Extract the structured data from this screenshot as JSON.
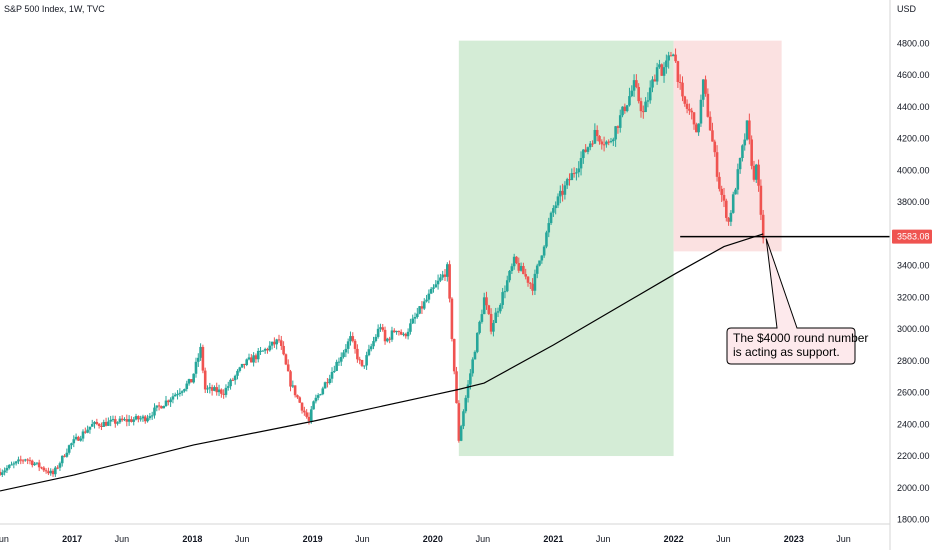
{
  "header": {
    "title": "S&P 500 Index, 1W, TVC"
  },
  "currency": "USD",
  "last_price": "3583.08",
  "annotation": {
    "lines": [
      "The $4000 round number",
      "is acting as support."
    ]
  },
  "colors": {
    "up": "#26a69a",
    "down": "#ef5350",
    "bull_zone": "#d4ecd6",
    "bear_zone": "#fbe1e1",
    "ma_line": "#000000",
    "price_tag": "#ef5350",
    "callout_fill": "#fde9ec",
    "callout_border": "#000000"
  },
  "chart_data": {
    "type": "candlestick",
    "yaxis": {
      "label": "USD",
      "range": [
        1800,
        4800
      ],
      "ticks": [
        "1800.00",
        "2000.00",
        "2200.00",
        "2400.00",
        "2600.00",
        "2800.00",
        "3000.00",
        "3200.00",
        "3400.00",
        "3600.00",
        "3800.00",
        "4000.00",
        "4200.00",
        "4400.00",
        "4600.00",
        "4800.00"
      ]
    },
    "xaxis": {
      "range": [
        "2016-05-27",
        "2023-10-20"
      ],
      "ticks": [
        {
          "date": "2016-06-01",
          "label": "Jun"
        },
        {
          "date": "2017-01-01",
          "label": "2017"
        },
        {
          "date": "2017-06-01",
          "label": "Jun"
        },
        {
          "date": "2018-01-01",
          "label": "2018"
        },
        {
          "date": "2018-06-01",
          "label": "Jun"
        },
        {
          "date": "2019-01-01",
          "label": "2019"
        },
        {
          "date": "2019-06-01",
          "label": "Jun"
        },
        {
          "date": "2020-01-01",
          "label": "2020"
        },
        {
          "date": "2020-06-01",
          "label": "Jun"
        },
        {
          "date": "2021-01-01",
          "label": "2021"
        },
        {
          "date": "2021-06-01",
          "label": "Jun"
        },
        {
          "date": "2022-01-01",
          "label": "2022"
        },
        {
          "date": "2022-06-01",
          "label": "Jun"
        },
        {
          "date": "2023-01-01",
          "label": "2023"
        },
        {
          "date": "2023-06-01",
          "label": "Jun"
        }
      ]
    },
    "price_path": [
      [
        "2016-05-27",
        2100
      ],
      [
        "2016-08-12",
        2185
      ],
      [
        "2016-11-04",
        2085
      ],
      [
        "2016-12-23",
        2263
      ],
      [
        "2017-03-01",
        2395
      ],
      [
        "2017-08-11",
        2440
      ],
      [
        "2017-12-29",
        2673
      ],
      [
        "2018-01-26",
        2872
      ],
      [
        "2018-02-09",
        2620
      ],
      [
        "2018-04-06",
        2604
      ],
      [
        "2018-06-08",
        2779
      ],
      [
        "2018-09-21",
        2929
      ],
      [
        "2018-10-26",
        2658
      ],
      [
        "2018-12-21",
        2416
      ],
      [
        "2019-01-04",
        2531
      ],
      [
        "2019-04-26",
        2939
      ],
      [
        "2019-05-31",
        2752
      ],
      [
        "2019-07-26",
        3025
      ],
      [
        "2019-08-09",
        2918
      ],
      [
        "2019-09-13",
        3007
      ],
      [
        "2019-10-04",
        2952
      ],
      [
        "2019-11-29",
        3140
      ],
      [
        "2020-02-14",
        3380
      ],
      [
        "2020-02-28",
        2954
      ],
      [
        "2020-03-20",
        2304
      ],
      [
        "2020-04-03",
        2488
      ],
      [
        "2020-06-05",
        3193
      ],
      [
        "2020-06-26",
        3009
      ],
      [
        "2020-09-04",
        3426
      ],
      [
        "2020-10-30",
        3270
      ],
      [
        "2020-12-31",
        3756
      ],
      [
        "2021-05-07",
        4232
      ],
      [
        "2021-06-18",
        4166
      ],
      [
        "2021-09-03",
        4535
      ],
      [
        "2021-10-01",
        4357
      ],
      [
        "2021-11-19",
        4698
      ],
      [
        "2021-11-26",
        4594
      ],
      [
        "2021-12-31",
        4766
      ],
      [
        "2022-01-28",
        4431
      ],
      [
        "2022-03-04",
        4328
      ],
      [
        "2022-03-11",
        4204
      ],
      [
        "2022-04-01",
        4545
      ],
      [
        "2022-05-20",
        3901
      ],
      [
        "2022-06-17",
        3674
      ],
      [
        "2022-07-29",
        4130
      ],
      [
        "2022-08-12",
        4280
      ],
      [
        "2022-08-26",
        4057
      ],
      [
        "2022-09-02",
        3924
      ],
      [
        "2022-09-09",
        4067
      ],
      [
        "2022-09-16",
        3873
      ],
      [
        "2022-09-23",
        3693
      ],
      [
        "2022-09-30",
        3583
      ]
    ],
    "moving_average": [
      [
        "2016-05-27",
        1980
      ],
      [
        "2017-01-06",
        2080
      ],
      [
        "2018-01-05",
        2270
      ],
      [
        "2019-01-04",
        2420
      ],
      [
        "2020-01-03",
        2585
      ],
      [
        "2020-03-20",
        2620
      ],
      [
        "2020-06-05",
        2660
      ],
      [
        "2021-01-01",
        2900
      ],
      [
        "2022-01-07",
        3350
      ],
      [
        "2022-06-03",
        3520
      ],
      [
        "2022-09-30",
        3600
      ]
    ],
    "zones": [
      {
        "label": "bull",
        "start": "2020-03-20",
        "end": "2022-01-01",
        "low": 2200,
        "high": 4818
      },
      {
        "label": "bear",
        "start": "2022-01-01",
        "end": "2022-11-25",
        "low": 3490,
        "high": 4818
      }
    ],
    "support_line": {
      "value": 3583.08,
      "start": "2022-01-21",
      "end": "2023-10-20"
    },
    "last_price": 3583.08
  }
}
